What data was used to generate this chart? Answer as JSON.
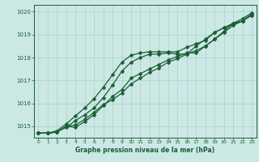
{
  "xlabel": "Graphe pression niveau de la mer (hPa)",
  "ylabel": "",
  "bg_color": "#cce8e4",
  "grid_color": "#aad0cc",
  "line_color": "#1a5e35",
  "x_hours": [
    0,
    1,
    2,
    3,
    4,
    5,
    6,
    7,
    8,
    9,
    10,
    11,
    12,
    13,
    14,
    15,
    16,
    17,
    18,
    19,
    20,
    21,
    22,
    23
  ],
  "line1": [
    1014.7,
    1014.7,
    1014.75,
    1015.0,
    1014.95,
    1015.2,
    1015.5,
    1015.9,
    1016.3,
    1016.6,
    1017.1,
    1017.3,
    1017.5,
    1017.7,
    1017.9,
    1018.05,
    1018.2,
    1018.2,
    1018.5,
    1018.8,
    1019.1,
    1019.4,
    1019.6,
    1019.85
  ],
  "line2": [
    1014.7,
    1014.7,
    1014.75,
    1015.0,
    1015.05,
    1015.3,
    1015.6,
    1015.95,
    1016.15,
    1016.45,
    1016.85,
    1017.1,
    1017.35,
    1017.55,
    1017.8,
    1017.95,
    1018.15,
    1018.5,
    1018.8,
    1019.1,
    1019.3,
    1019.5,
    1019.6,
    1019.9
  ],
  "line3": [
    1014.7,
    1014.7,
    1014.8,
    1015.1,
    1015.45,
    1015.8,
    1016.2,
    1016.7,
    1017.25,
    1017.8,
    1018.1,
    1018.2,
    1018.25,
    1018.25,
    1018.25,
    1018.25,
    1018.45,
    1018.6,
    1018.75,
    1019.1,
    1019.3,
    1019.45,
    1019.6,
    1019.85
  ],
  "line4": [
    1014.7,
    1014.7,
    1014.75,
    1014.95,
    1015.25,
    1015.5,
    1015.8,
    1016.25,
    1016.8,
    1017.4,
    1017.8,
    1018.0,
    1018.15,
    1018.15,
    1018.2,
    1018.15,
    1018.15,
    1018.3,
    1018.5,
    1018.8,
    1019.15,
    1019.5,
    1019.7,
    1019.95
  ],
  "ylim": [
    1014.5,
    1020.3
  ],
  "xlim": [
    -0.5,
    23.5
  ],
  "yticks": [
    1015,
    1016,
    1017,
    1018,
    1019,
    1020
  ],
  "xticks": [
    0,
    1,
    2,
    3,
    4,
    5,
    6,
    7,
    8,
    9,
    10,
    11,
    12,
    13,
    14,
    15,
    16,
    17,
    18,
    19,
    20,
    21,
    22,
    23
  ]
}
